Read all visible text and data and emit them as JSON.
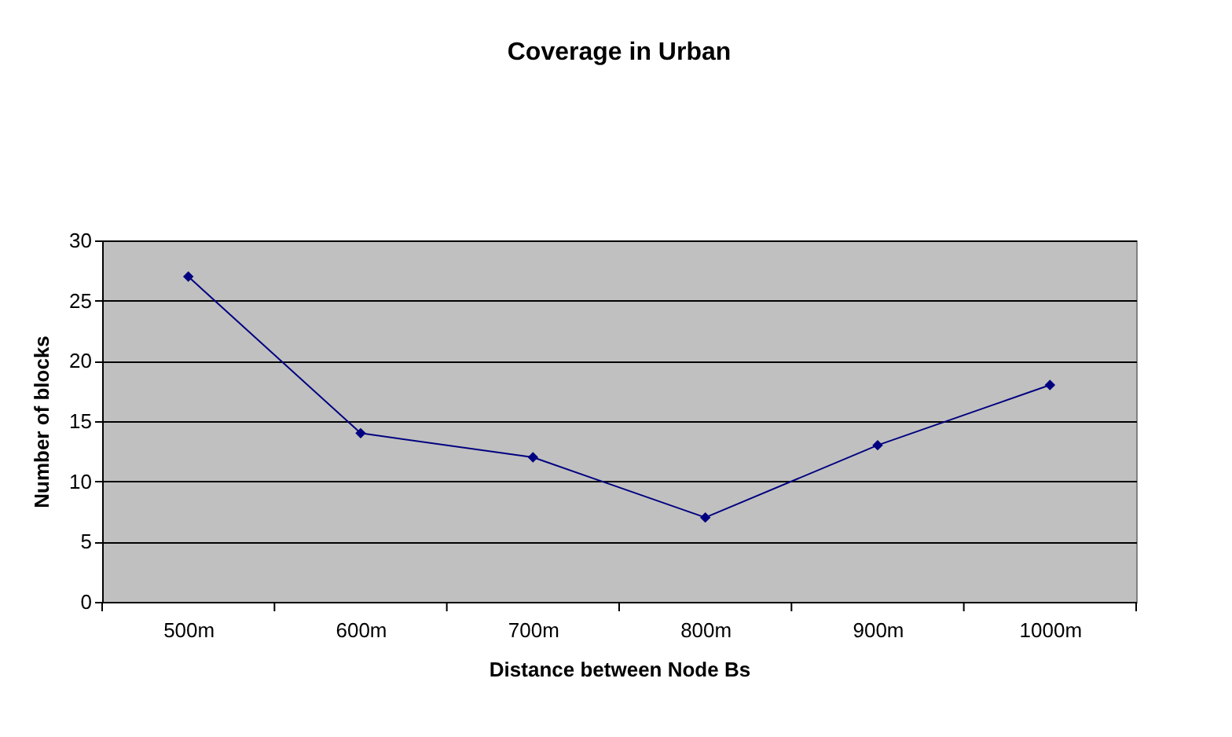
{
  "chart_data": {
    "type": "line",
    "title": "Coverage in Urban",
    "xlabel": "Distance between Node Bs",
    "ylabel": "Number of blocks",
    "categories": [
      "500m",
      "600m",
      "700m",
      "800m",
      "900m",
      "1000m"
    ],
    "series": [
      {
        "color": "#000080",
        "values": [
          27,
          14,
          12,
          7,
          13,
          18
        ]
      }
    ],
    "ylim": [
      0,
      30
    ],
    "yticks": [
      0,
      5,
      10,
      15,
      20,
      25,
      30
    ],
    "grid": "y",
    "marker": "diamond",
    "line_style": "solid",
    "legend": false
  }
}
